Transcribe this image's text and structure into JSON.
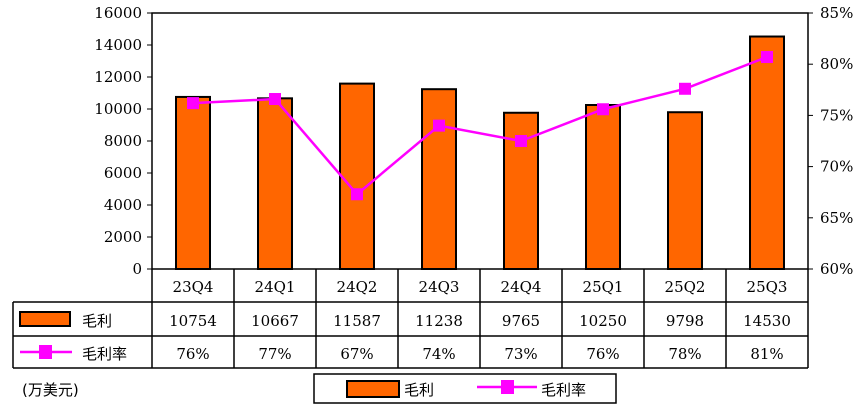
{
  "chart_data": {
    "type": "bar",
    "categories": [
      "23Q4",
      "24Q1",
      "24Q2",
      "24Q3",
      "24Q4",
      "25Q1",
      "25Q2",
      "25Q3"
    ],
    "series": [
      {
        "name": "毛利",
        "type": "bar",
        "axis": "left",
        "color": "#FF6600",
        "values": [
          10754,
          10667,
          11587,
          11238,
          9765,
          10250,
          9798,
          14530
        ],
        "labels": [
          "10754",
          "10667",
          "11587",
          "11238",
          "9765",
          "10250",
          "9798",
          "14530"
        ]
      },
      {
        "name": "毛利率",
        "type": "line",
        "axis": "right",
        "color": "#FF00FF",
        "marker": "square",
        "values": [
          76.2,
          76.6,
          67.3,
          74.0,
          72.5,
          75.6,
          77.6,
          80.7
        ],
        "labels": [
          "76%",
          "77%",
          "67%",
          "74%",
          "73%",
          "76%",
          "78%",
          "81%"
        ]
      }
    ],
    "ylim": [
      0,
      16000
    ],
    "yticks": [
      "0",
      "2000",
      "4000",
      "6000",
      "8000",
      "10000",
      "12000",
      "14000",
      "16000"
    ],
    "y2lim": [
      60,
      85
    ],
    "y2ticks": [
      "60%",
      "65%",
      "70%",
      "75%",
      "80%",
      "85%"
    ],
    "unit_note": "(万美元)",
    "grid": false,
    "legend": "bottom",
    "data_table": true
  }
}
